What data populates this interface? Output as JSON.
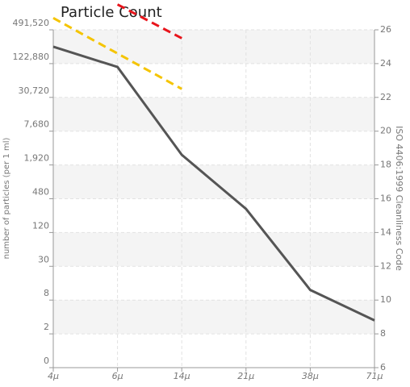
{
  "chart_data": {
    "type": "line",
    "title": "Particle Count",
    "categories": [
      "4µ",
      "6µ",
      "14µ",
      "21µ",
      "38µ",
      "71µ"
    ],
    "ylabel": "number of particles (per 1 ml)",
    "y2label": "ISO 4406:1999 Cleanliness Code",
    "yticks": [
      0,
      2,
      8,
      30,
      120,
      480,
      {
        "value": 1920,
        "label": "1,920"
      },
      {
        "value": 7680,
        "label": "7,680"
      },
      {
        "value": 30720,
        "label": "30,720"
      },
      {
        "value": 122880,
        "label": "122,880"
      },
      {
        "value": 491520,
        "label": "491,520"
      }
    ],
    "y2lim": [
      6,
      26
    ],
    "y2ticks": [
      6,
      8,
      10,
      12,
      14,
      16,
      18,
      20,
      22,
      24,
      26
    ],
    "grid": true,
    "series": [
      {
        "color": "#555555",
        "axis": "y2",
        "dash": false,
        "values": [
          25.0,
          23.8,
          18.6,
          15.4,
          10.6,
          8.8
        ]
      },
      {
        "color": "#f5c400",
        "axis": "y2",
        "dash": true,
        "values": [
          26.7,
          24.6,
          22.5,
          null,
          null,
          null
        ]
      },
      {
        "color": "#e8141b",
        "axis": "y2",
        "dash": true,
        "values": [
          null,
          27.5,
          25.5,
          null,
          null,
          null
        ]
      }
    ]
  }
}
